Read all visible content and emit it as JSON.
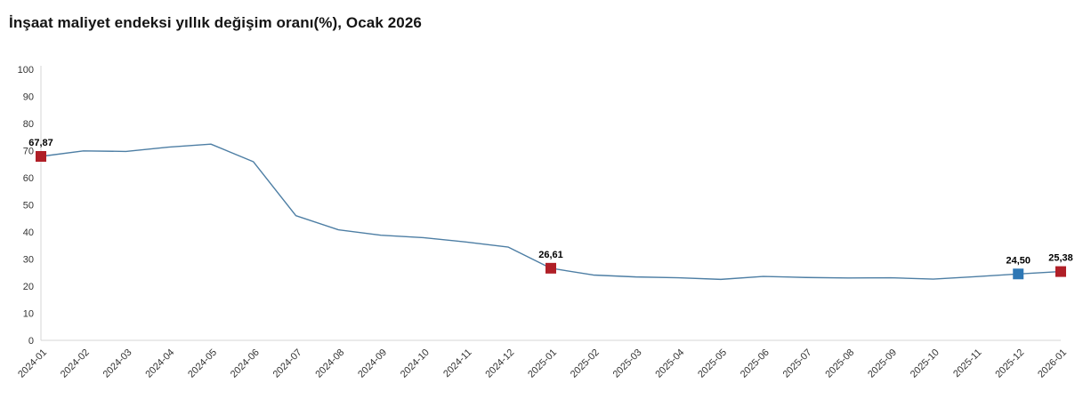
{
  "page": {
    "title": "İnşaat maliyet endeksi yıllık değişim oranı(%), Ocak 2026"
  },
  "chart_data": {
    "type": "line",
    "title": "İnşaat maliyet endeksi yıllık değişim oranı(%), Ocak 2026",
    "categories": [
      "2024-01",
      "2024-02",
      "2024-03",
      "2024-04",
      "2024-05",
      "2024-06",
      "2024-07",
      "2024-08",
      "2024-09",
      "2024-10",
      "2024-11",
      "2024-12",
      "2025-01",
      "2025-02",
      "2025-03",
      "2025-04",
      "2025-05",
      "2025-06",
      "2025-07",
      "2025-08",
      "2025-09",
      "2025-10",
      "2025-11",
      "2025-12",
      "2026-01"
    ],
    "series": [
      {
        "name": "Yıllık değişim oranı (%)",
        "values": [
          67.87,
          69.9,
          69.7,
          71.3,
          72.4,
          65.9,
          46.0,
          40.8,
          38.8,
          37.9,
          36.3,
          34.4,
          26.61,
          24.1,
          23.4,
          23.1,
          22.5,
          23.6,
          23.2,
          23.0,
          23.1,
          22.6,
          23.5,
          24.5,
          25.38
        ]
      }
    ],
    "ylim": [
      0,
      100
    ],
    "y_ticks": [
      0,
      10,
      20,
      30,
      40,
      50,
      60,
      70,
      80,
      90,
      100
    ],
    "grid": "off",
    "legend": "none",
    "xlabel": "",
    "ylabel": "",
    "point_labels": [
      {
        "index": 0,
        "category": "2024-01",
        "value": 67.87,
        "label": "67,87",
        "marker_color": "#b01f27"
      },
      {
        "index": 12,
        "category": "2025-01",
        "value": 26.61,
        "label": "26,61",
        "marker_color": "#b01f27"
      },
      {
        "index": 23,
        "category": "2025-12",
        "value": 24.5,
        "label": "24,50",
        "marker_color": "#2d77b5"
      },
      {
        "index": 24,
        "category": "2026-01",
        "value": 25.38,
        "label": "25,38",
        "marker_color": "#b01f27"
      }
    ],
    "colors": {
      "line": "#4d7ea4",
      "axis_line": "#d6d6d6",
      "tick_label": "#333333",
      "point_label": "#000000",
      "marker_red": "#b01f27",
      "marker_blue": "#2d77b5"
    }
  }
}
